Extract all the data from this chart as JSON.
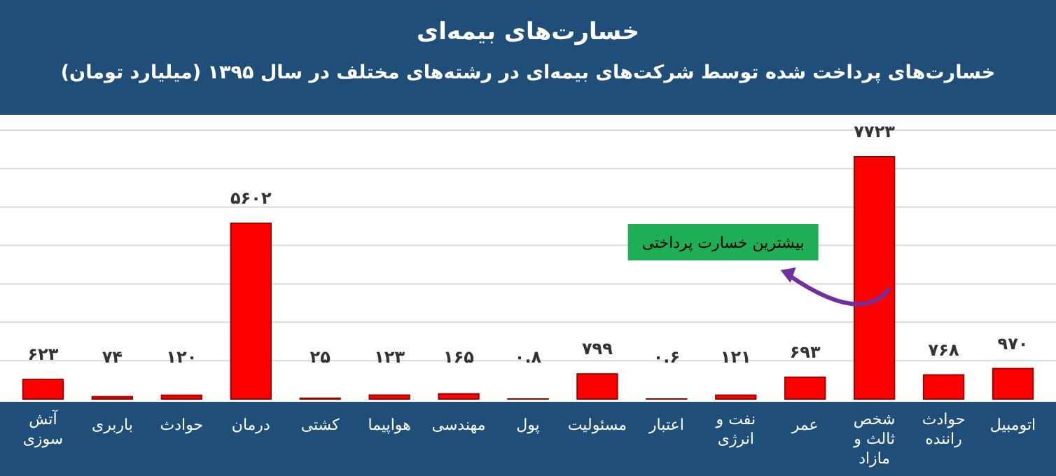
{
  "chart_data": {
    "type": "bar",
    "title": "خسارت‌های بیمه‌ای",
    "subtitle": "خسارت‌های پرداخت شده توسط شرکت‌های بیمه‌ای در رشته‌های مختلف در سال ۱۳۹۵ (میلیارد تومان)",
    "categories": [
      "آتش سوزی",
      "باربری",
      "حوادث",
      "درمان",
      "کشتی",
      "هواپیما",
      "مهندسی",
      "پول",
      "مسئولیت",
      "اعتبار",
      "نفت و انرژی",
      "عمر",
      "شخص ثالث و مازاد",
      "حوادث راننده",
      "اتومبیل"
    ],
    "values": [
      623,
      74,
      120,
      5602,
      25,
      123,
      165,
      0.8,
      799,
      0.6,
      121,
      693,
      7723,
      768,
      970
    ],
    "value_labels": [
      "۶۲۳",
      "۷۴",
      "۱۲۰",
      "۵۶۰۲",
      "۲۵",
      "۱۲۳",
      "۱۶۵",
      "۰.۸",
      "۷۹۹",
      "۰.۶",
      "۱۲۱",
      "۶۹۳",
      "۷۷۲۳",
      "۷۶۸",
      "۹۷۰"
    ],
    "color": "#ff0000",
    "grid": "y",
    "annotations": [
      "بیشترین خسارت پرداختی"
    ]
  }
}
